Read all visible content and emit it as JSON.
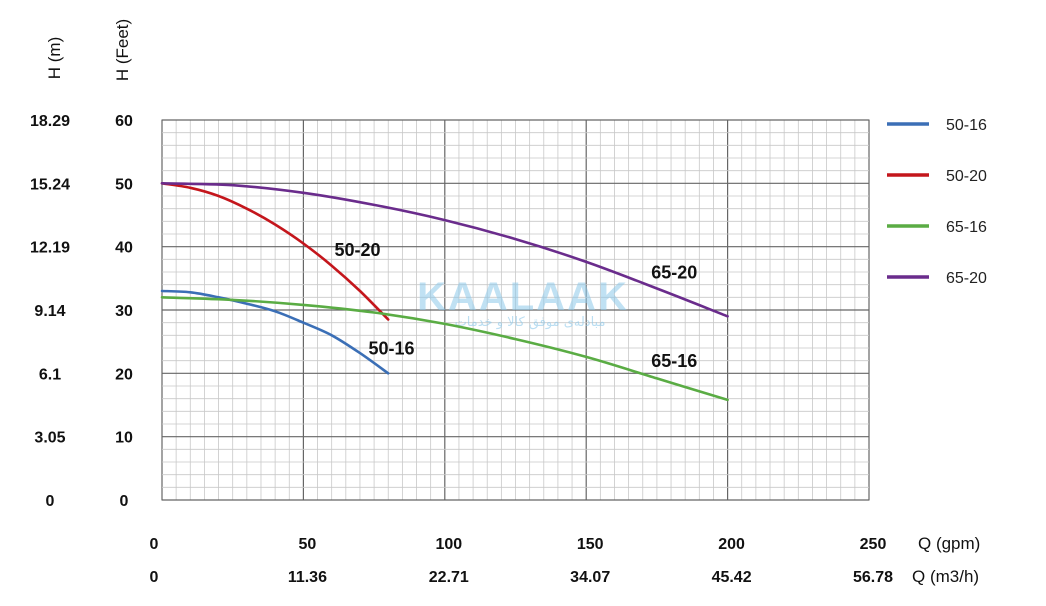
{
  "watermark": {
    "logo_text": "KAALAAK",
    "tagline": "مبادله‌ی موفق کالا و خدمات"
  },
  "chart_data": {
    "type": "line",
    "title": "",
    "axes": {
      "y_feet": {
        "label": "H (Feet)",
        "min": 0,
        "max": 60,
        "ticks": [
          0,
          10,
          20,
          30,
          40,
          50,
          60
        ]
      },
      "y_m": {
        "label": "H (m)",
        "ticks": [
          "0",
          "3.05",
          "6.1",
          "9.14",
          "12.19",
          "15.24",
          "18.29"
        ]
      },
      "x_gpm": {
        "label": "Q (gpm)",
        "min": 0,
        "max": 250,
        "ticks": [
          0,
          50,
          100,
          150,
          200,
          250
        ]
      },
      "x_m3h": {
        "label": "Q (m3/h)",
        "ticks": [
          "0",
          "11.36",
          "22.71",
          "34.07",
          "45.42",
          "56.78"
        ]
      }
    },
    "grid": true,
    "legend_position": "right",
    "series": [
      {
        "name": "50-16",
        "color": "#3b6fb6",
        "label": "50-16",
        "label_at": [
          73,
          23
        ],
        "points": [
          [
            0,
            33
          ],
          [
            10,
            32.8
          ],
          [
            20,
            32
          ],
          [
            30,
            31
          ],
          [
            40,
            29.8
          ],
          [
            50,
            28
          ],
          [
            60,
            26
          ],
          [
            70,
            23.2
          ],
          [
            80,
            20
          ]
        ]
      },
      {
        "name": "50-20",
        "color": "#c4161c",
        "label": "50-20",
        "label_at": [
          61,
          38.5
        ],
        "points": [
          [
            0,
            50
          ],
          [
            10,
            49.3
          ],
          [
            20,
            48
          ],
          [
            30,
            46
          ],
          [
            40,
            43.5
          ],
          [
            50,
            40.5
          ],
          [
            60,
            37
          ],
          [
            70,
            33
          ],
          [
            80,
            28.5
          ]
        ]
      },
      {
        "name": "65-16",
        "color": "#5aac44",
        "label": "65-16",
        "label_at": [
          173,
          21
        ],
        "points": [
          [
            0,
            32
          ],
          [
            25,
            31.6
          ],
          [
            50,
            30.8
          ],
          [
            75,
            29.6
          ],
          [
            100,
            27.8
          ],
          [
            125,
            25.4
          ],
          [
            150,
            22.6
          ],
          [
            175,
            19.2
          ],
          [
            200,
            15.8
          ]
        ]
      },
      {
        "name": "65-20",
        "color": "#6a2c8c",
        "label": "65-20",
        "label_at": [
          173,
          35
        ],
        "points": [
          [
            0,
            50
          ],
          [
            25,
            49.7
          ],
          [
            50,
            48.5
          ],
          [
            75,
            46.6
          ],
          [
            100,
            44.2
          ],
          [
            125,
            41.2
          ],
          [
            150,
            37.6
          ],
          [
            175,
            33.4
          ],
          [
            200,
            29
          ]
        ]
      }
    ]
  }
}
